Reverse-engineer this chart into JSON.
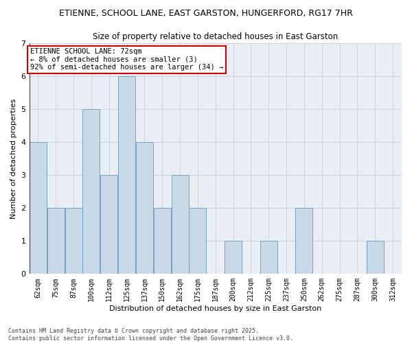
{
  "title1": "ETIENNE, SCHOOL LANE, EAST GARSTON, HUNGERFORD, RG17 7HR",
  "title2": "Size of property relative to detached houses in East Garston",
  "xlabel": "Distribution of detached houses by size in East Garston",
  "ylabel": "Number of detached properties",
  "bins": [
    "62sqm",
    "75sqm",
    "87sqm",
    "100sqm",
    "112sqm",
    "125sqm",
    "137sqm",
    "150sqm",
    "162sqm",
    "175sqm",
    "187sqm",
    "200sqm",
    "212sqm",
    "225sqm",
    "237sqm",
    "250sqm",
    "262sqm",
    "275sqm",
    "287sqm",
    "300sqm",
    "312sqm"
  ],
  "values": [
    4,
    2,
    2,
    5,
    3,
    6,
    4,
    2,
    3,
    2,
    0,
    1,
    0,
    1,
    0,
    2,
    0,
    0,
    0,
    1,
    0
  ],
  "bar_color": "#c9d9e8",
  "bar_edge_color": "#6699bb",
  "grid_color": "#c8d0d8",
  "bg_color": "#e8eef4",
  "annotation_line1": "ETIENNE SCHOOL LANE: 72sqm",
  "annotation_line2": "← 8% of detached houses are smaller (3)",
  "annotation_line3": "92% of semi-detached houses are larger (34) →",
  "annotation_box_color": "#cc0000",
  "vline_color": "#cc0000",
  "footer": "Contains HM Land Registry data © Crown copyright and database right 2025.\nContains public sector information licensed under the Open Government Licence v3.0.",
  "ylim": [
    0,
    7
  ],
  "yticks": [
    0,
    1,
    2,
    3,
    4,
    5,
    6,
    7
  ]
}
